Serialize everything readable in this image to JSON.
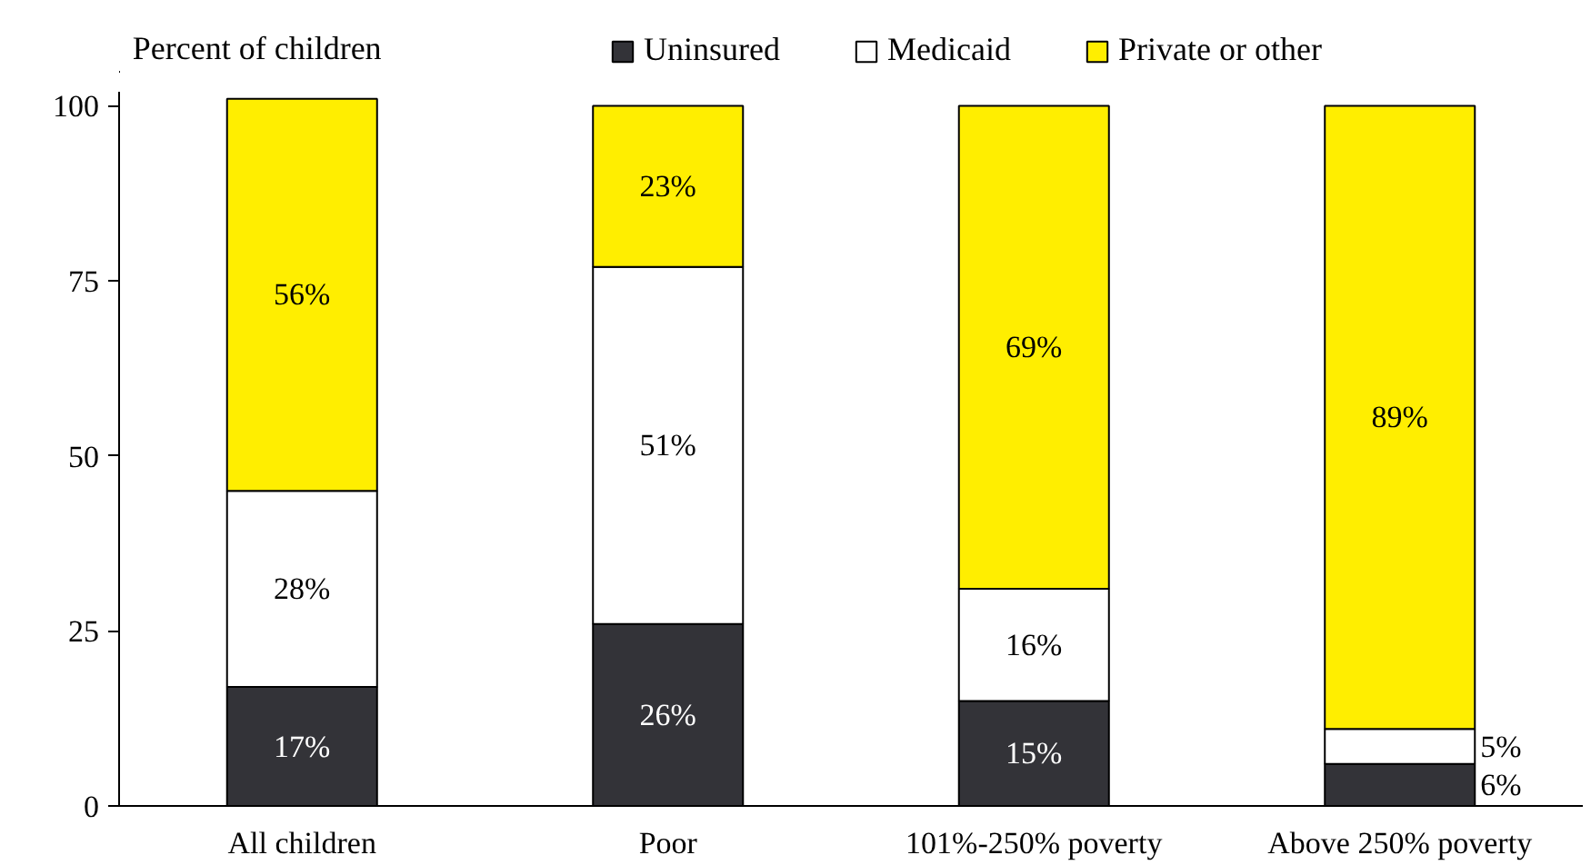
{
  "chart_data": {
    "type": "bar",
    "stacked": true,
    "ylabel": "Percent of children",
    "categories": [
      "All children",
      "Poor",
      "101%-250% poverty",
      "Above 250% poverty"
    ],
    "series": [
      {
        "name": "Uninsured",
        "color": "#333338",
        "values": [
          17,
          26,
          15,
          6
        ],
        "value_labels": [
          "17%",
          "26%",
          "15%",
          "6%"
        ]
      },
      {
        "name": "Medicaid",
        "color": "#ffffff",
        "values": [
          28,
          51,
          16,
          5
        ],
        "value_labels": [
          "28%",
          "51%",
          "16%",
          "5%"
        ]
      },
      {
        "name": "Private or other",
        "color": "#ffee00",
        "values": [
          56,
          23,
          69,
          89
        ],
        "value_labels": [
          "56%",
          "23%",
          "69%",
          "89%"
        ]
      }
    ],
    "ylim": [
      0,
      102
    ],
    "yticks": [
      0,
      25,
      50,
      75,
      100
    ],
    "grid": false,
    "legend": "top"
  }
}
